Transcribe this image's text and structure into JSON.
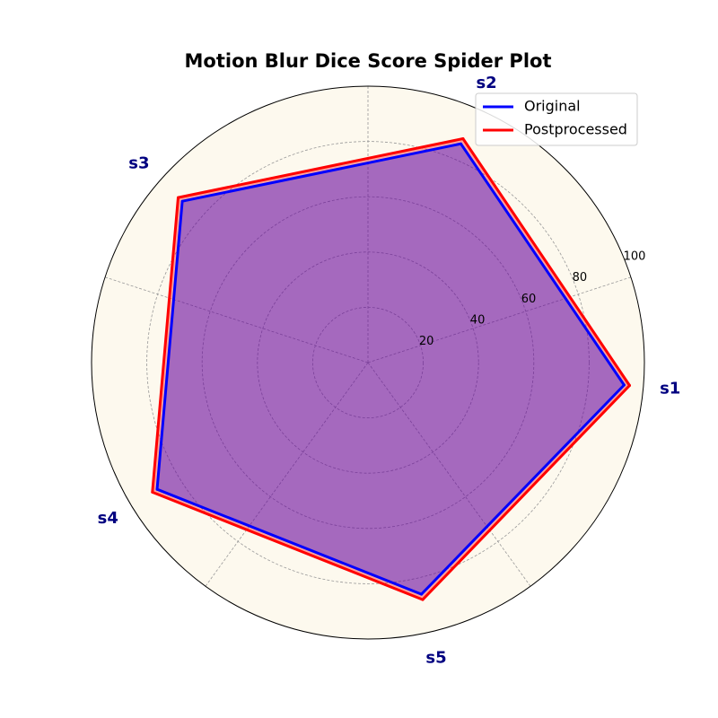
{
  "chart_data": {
    "type": "radar",
    "title": "Motion Blur Dice Score Spider Plot",
    "categories": [
      "s1",
      "s2",
      "s3",
      "s4",
      "s5"
    ],
    "radial_ticks": [
      20,
      40,
      60,
      80,
      100
    ],
    "rlim": [
      0,
      100
    ],
    "grid": true,
    "legend_position": "top-right",
    "background_color": "#fdf9ee",
    "series": [
      {
        "name": "Original",
        "values": [
          93,
          86,
          89,
          89,
          86
        ],
        "color": "#0000ff",
        "fill": "#0000ff"
      },
      {
        "name": "Postprocessed",
        "values": [
          95,
          88,
          91,
          91,
          88
        ],
        "color": "#ff0000",
        "fill": "#ff0000"
      }
    ]
  }
}
